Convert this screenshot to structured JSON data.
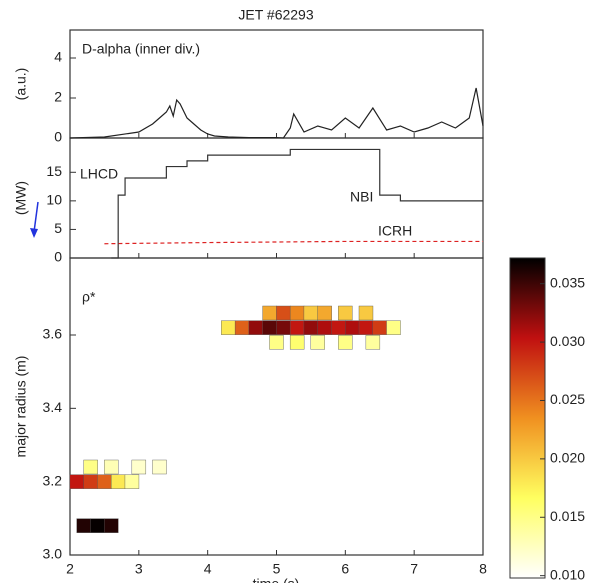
{
  "chart_data": [
    {
      "type": "line",
      "title": "JET #62293",
      "ylabel": "(a.u.)",
      "annotation": "D-alpha (inner div.)",
      "xlim": [
        2,
        8
      ],
      "ylim": [
        0,
        5.4
      ],
      "yticks": [
        0,
        2,
        4
      ],
      "x": [
        2,
        2.5,
        3,
        3.2,
        3.3,
        3.4,
        3.45,
        3.5,
        3.55,
        3.6,
        3.7,
        3.8,
        3.9,
        4.0,
        4.1,
        4.3,
        4.6,
        5.0,
        5.1,
        5.2,
        5.25,
        5.4,
        5.6,
        5.8,
        6.0,
        6.2,
        6.4,
        6.6,
        6.8,
        7.0,
        7.2,
        7.4,
        7.6,
        7.8,
        7.9,
        8.0
      ],
      "series": [
        {
          "color": "#222222",
          "values": [
            0,
            0.05,
            0.3,
            0.7,
            1.0,
            1.3,
            1.6,
            1.1,
            1.9,
            1.7,
            1.0,
            0.7,
            0.4,
            0.2,
            0.1,
            0.05,
            0.02,
            0.02,
            0,
            0.5,
            1.2,
            0.3,
            0.6,
            0.4,
            1.0,
            0.5,
            1.5,
            0.4,
            0.6,
            0.3,
            0.5,
            0.8,
            0.5,
            1.0,
            2.5,
            0.6
          ]
        }
      ]
    },
    {
      "type": "line",
      "ylabel": "(MW)",
      "annotation": "LHCD",
      "annotation_color": "#2233dd",
      "xlim": [
        2,
        8
      ],
      "ylim": [
        0,
        21
      ],
      "yticks": [
        0,
        5,
        10,
        15
      ],
      "series": [
        {
          "name": "NBI",
          "color": "#333333",
          "linestyle": "solid",
          "x": [
            2.6,
            2.7,
            2.7,
            2.8,
            2.8,
            3.4,
            3.4,
            3.7,
            3.7,
            4.0,
            4.0,
            5.2,
            5.2,
            6.5,
            6.5,
            6.8,
            6.8,
            8.0
          ],
          "values": [
            0,
            0,
            11,
            11,
            14,
            14,
            16,
            16,
            17,
            17,
            18,
            18,
            19,
            19,
            11,
            11,
            10,
            10
          ]
        },
        {
          "name": "ICRH",
          "color": "#dd2222",
          "linestyle": "dashed",
          "x": [
            2.5,
            4,
            6,
            8
          ],
          "values": [
            2.5,
            2.7,
            2.9,
            2.9
          ]
        }
      ]
    },
    {
      "type": "contour",
      "ylabel": "major radius (m)",
      "xlabel": "time (s)",
      "annotation": "ρ*",
      "xlim": [
        2,
        8
      ],
      "ylim": [
        3.0,
        3.81
      ],
      "xticks": [
        2,
        3,
        4,
        5,
        6,
        7,
        8
      ],
      "yticks": [
        {
          "value": 3.0,
          "label": "3.0"
        },
        3.2,
        3.4,
        3.6
      ],
      "clim": [
        0.0098,
        0.0372
      ],
      "cticks": [
        {
          "value": 0.01,
          "label": "0.010"
        },
        {
          "value": 0.015,
          "label": "0.015"
        },
        {
          "value": 0.02,
          "label": "0.020"
        },
        {
          "value": 0.025,
          "label": "0.025"
        },
        {
          "value": 0.03,
          "label": "0.030"
        },
        {
          "value": 0.035,
          "label": "0.035"
        }
      ],
      "x": [
        4.3,
        4.5,
        4.7,
        4.9,
        5.1,
        5.3,
        5.5,
        5.7,
        5.9,
        6.1,
        6.3,
        6.5,
        6.7,
        4.9,
        5.1,
        5.3,
        5.5,
        5.7,
        6.0,
        6.3,
        5.0,
        5.3,
        5.6,
        6.0,
        6.4,
        2.1,
        2.3,
        2.5,
        2.7,
        2.9,
        2.3,
        2.6,
        3.0,
        3.3,
        2.2,
        2.4,
        2.6
      ],
      "y": [
        3.62,
        3.62,
        3.62,
        3.62,
        3.62,
        3.62,
        3.62,
        3.62,
        3.62,
        3.62,
        3.62,
        3.62,
        3.62,
        3.66,
        3.66,
        3.66,
        3.66,
        3.66,
        3.66,
        3.66,
        3.58,
        3.58,
        3.58,
        3.58,
        3.58,
        3.2,
        3.2,
        3.2,
        3.2,
        3.2,
        3.24,
        3.24,
        3.24,
        3.24,
        3.08,
        3.08,
        3.08
      ],
      "values": [
        0.018,
        0.026,
        0.032,
        0.034,
        0.033,
        0.03,
        0.032,
        0.031,
        0.03,
        0.031,
        0.03,
        0.028,
        0.015,
        0.022,
        0.027,
        0.024,
        0.02,
        0.022,
        0.02,
        0.02,
        0.015,
        0.016,
        0.014,
        0.015,
        0.014,
        0.03,
        0.028,
        0.026,
        0.018,
        0.014,
        0.015,
        0.013,
        0.012,
        0.012,
        0.036,
        0.037,
        0.036
      ]
    }
  ]
}
